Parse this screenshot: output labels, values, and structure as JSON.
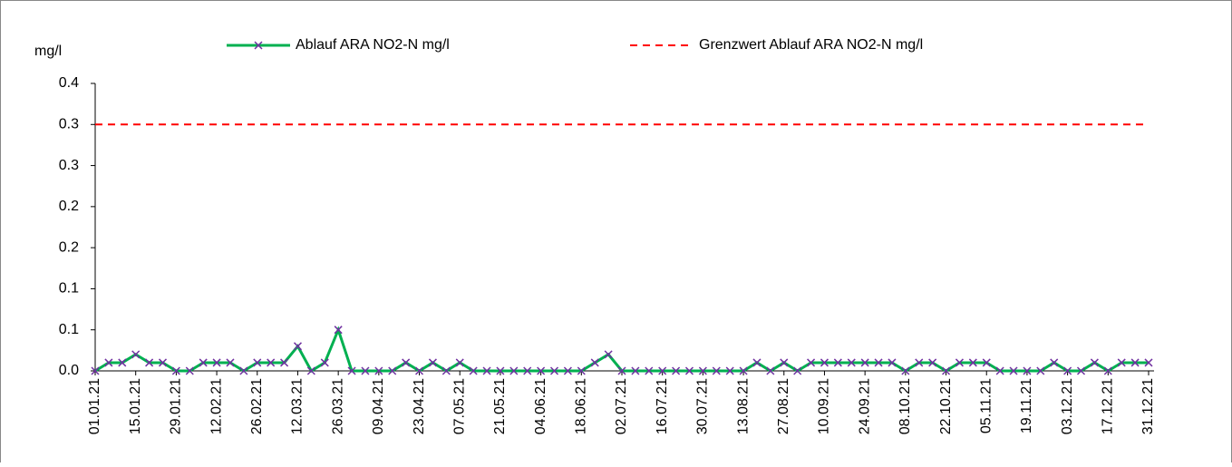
{
  "chart_data": {
    "type": "line",
    "y_label": "mg/l",
    "categories": [
      "01.01.21",
      null,
      null,
      "15.01.21",
      null,
      null,
      "29.01.21",
      null,
      null,
      "12.02.21",
      null,
      null,
      "26.02.21",
      null,
      null,
      "12.03.21",
      null,
      null,
      "26.03.21",
      null,
      null,
      "09.04.21",
      null,
      null,
      "23.04.21",
      null,
      null,
      "07.05.21",
      null,
      null,
      "21.05.21",
      null,
      null,
      "04.06.21",
      null,
      null,
      "18.06.21",
      null,
      null,
      "02.07.21",
      null,
      null,
      "16.07.21",
      null,
      null,
      "30.07.21",
      null,
      null,
      "13.08.21",
      null,
      null,
      "27.08.21",
      null,
      null,
      "10.09.21",
      null,
      null,
      "24.09.21",
      null,
      null,
      "08.10.21",
      null,
      null,
      "22.10.21",
      null,
      null,
      "05.11.21",
      null,
      null,
      "19.11.21",
      null,
      null,
      "03.12.21",
      null,
      null,
      "17.12.21",
      null,
      null,
      "31.12.21"
    ],
    "series": [
      {
        "name": "Ablauf ARA NO2-N mg/l",
        "color": "#00b050",
        "marker": "x",
        "marker_color": "#7030a0",
        "dashed": false,
        "values": [
          0,
          0.01,
          0.01,
          0.02,
          0.01,
          0.01,
          0,
          0,
          0.01,
          0.01,
          0.01,
          0,
          0.01,
          0.01,
          0.01,
          0.03,
          0,
          0.01,
          0.05,
          0,
          0,
          0,
          0,
          0.01,
          0,
          0.01,
          0,
          0.01,
          0,
          0,
          0,
          0,
          0,
          0,
          0,
          0,
          0,
          0.01,
          0.02,
          0,
          0,
          0,
          0,
          0,
          0,
          0,
          0,
          0,
          0,
          0.01,
          0,
          0.01,
          0,
          0.01,
          0.01,
          0.01,
          0.01,
          0.01,
          0.01,
          0.01,
          0,
          0.01,
          0.01,
          0,
          0.01,
          0.01,
          0.01,
          0,
          0,
          0,
          0,
          0.01,
          0,
          0,
          0.01,
          0,
          0.01,
          0.01,
          0.01
        ]
      },
      {
        "name": "Grenzwert Ablauf ARA NO2-N mg/l",
        "color": "#ff0000",
        "marker": null,
        "dashed": true,
        "values": [
          0.3,
          0.3,
          0.3,
          0.3,
          0.3,
          0.3,
          0.3,
          0.3,
          0.3,
          0.3,
          0.3,
          0.3,
          0.3,
          0.3,
          0.3,
          0.3,
          0.3,
          0.3,
          0.3,
          0.3,
          0.3,
          0.3,
          0.3,
          0.3,
          0.3,
          0.3,
          0.3,
          0.3,
          0.3,
          0.3,
          0.3,
          0.3,
          0.3,
          0.3,
          0.3,
          0.3,
          0.3,
          0.3,
          0.3,
          0.3,
          0.3,
          0.3,
          0.3,
          0.3,
          0.3,
          0.3,
          0.3,
          0.3,
          0.3,
          0.3,
          0.3,
          0.3,
          0.3,
          0.3,
          0.3,
          0.3,
          0.3,
          0.3,
          0.3,
          0.3,
          0.3,
          0.3,
          0.3,
          0.3,
          0.3,
          0.3,
          0.3,
          0.3,
          0.3,
          0.3,
          0.3,
          0.3,
          0.3,
          0.3,
          0.3,
          0.3,
          0.3,
          0.3,
          0.3
        ]
      }
    ],
    "ylim": [
      0,
      0.35
    ],
    "yticks": [
      {
        "value": 0,
        "label": "0.0"
      },
      {
        "value": 0.05,
        "label": "0.1"
      },
      0.1,
      {
        "value": 0.15,
        "label": "0.2"
      },
      0.2,
      {
        "value": 0.25,
        "label": "0.3"
      },
      0.3,
      {
        "value": 0.35,
        "label": "0.4"
      }
    ],
    "grid": false,
    "legend": "top"
  }
}
